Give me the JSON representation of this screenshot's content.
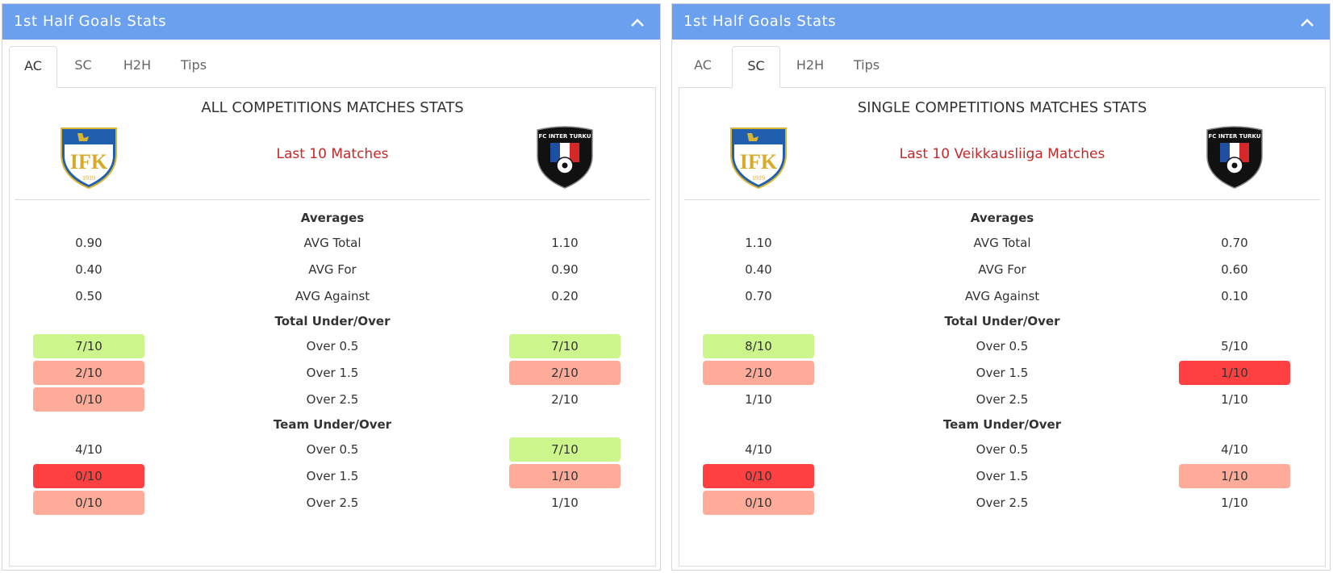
{
  "panels": [
    {
      "header": {
        "title": "1st Half Goals Stats",
        "collapse_icon": "chevron-up-icon"
      },
      "tabs": [
        {
          "label": "AC",
          "active": true
        },
        {
          "label": "SC",
          "active": false
        },
        {
          "label": "H2H",
          "active": false
        },
        {
          "label": "Tips",
          "active": false
        }
      ],
      "section_title": "ALL COMPETITIONS MATCHES STATS",
      "sub_title": "Last 10 Matches",
      "home_logo": "ifk-crest-icon",
      "away_logo": "fc-inter-turku-crest-icon",
      "groups": [
        {
          "title": "Averages",
          "rows": [
            {
              "label": "AVG Total",
              "home": "0.90",
              "away": "1.10",
              "home_color": "none",
              "away_color": "none"
            },
            {
              "label": "AVG For",
              "home": "0.40",
              "away": "0.90",
              "home_color": "none",
              "away_color": "none"
            },
            {
              "label": "AVG Against",
              "home": "0.50",
              "away": "0.20",
              "home_color": "none",
              "away_color": "none"
            }
          ]
        },
        {
          "title": "Total Under/Over",
          "rows": [
            {
              "label": "Over 0.5",
              "home": "7/10",
              "away": "7/10",
              "home_color": "green",
              "away_color": "green"
            },
            {
              "label": "Over 1.5",
              "home": "2/10",
              "away": "2/10",
              "home_color": "salmon",
              "away_color": "salmon"
            },
            {
              "label": "Over 2.5",
              "home": "0/10",
              "away": "2/10",
              "home_color": "salmon",
              "away_color": "none"
            }
          ]
        },
        {
          "title": "Team Under/Over",
          "rows": [
            {
              "label": "Over 0.5",
              "home": "4/10",
              "away": "7/10",
              "home_color": "none",
              "away_color": "green"
            },
            {
              "label": "Over 1.5",
              "home": "0/10",
              "away": "1/10",
              "home_color": "red",
              "away_color": "salmon"
            },
            {
              "label": "Over 2.5",
              "home": "0/10",
              "away": "1/10",
              "home_color": "salmon",
              "away_color": "none"
            }
          ]
        }
      ]
    },
    {
      "header": {
        "title": "1st Half Goals Stats",
        "collapse_icon": "chevron-up-icon"
      },
      "tabs": [
        {
          "label": "AC",
          "active": false
        },
        {
          "label": "SC",
          "active": true
        },
        {
          "label": "H2H",
          "active": false
        },
        {
          "label": "Tips",
          "active": false
        }
      ],
      "section_title": "SINGLE COMPETITIONS MATCHES STATS",
      "sub_title": "Last 10 Veikkausliiga Matches",
      "home_logo": "ifk-crest-icon",
      "away_logo": "fc-inter-turku-crest-icon",
      "groups": [
        {
          "title": "Averages",
          "rows": [
            {
              "label": "AVG Total",
              "home": "1.10",
              "away": "0.70",
              "home_color": "none",
              "away_color": "none"
            },
            {
              "label": "AVG For",
              "home": "0.40",
              "away": "0.60",
              "home_color": "none",
              "away_color": "none"
            },
            {
              "label": "AVG Against",
              "home": "0.70",
              "away": "0.10",
              "home_color": "none",
              "away_color": "none"
            }
          ]
        },
        {
          "title": "Total Under/Over",
          "rows": [
            {
              "label": "Over 0.5",
              "home": "8/10",
              "away": "5/10",
              "home_color": "green",
              "away_color": "none"
            },
            {
              "label": "Over 1.5",
              "home": "2/10",
              "away": "1/10",
              "home_color": "salmon",
              "away_color": "red"
            },
            {
              "label": "Over 2.5",
              "home": "1/10",
              "away": "1/10",
              "home_color": "none",
              "away_color": "none"
            }
          ]
        },
        {
          "title": "Team Under/Over",
          "rows": [
            {
              "label": "Over 0.5",
              "home": "4/10",
              "away": "4/10",
              "home_color": "none",
              "away_color": "none"
            },
            {
              "label": "Over 1.5",
              "home": "0/10",
              "away": "1/10",
              "home_color": "red",
              "away_color": "salmon"
            },
            {
              "label": "Over 2.5",
              "home": "0/10",
              "away": "1/10",
              "home_color": "salmon",
              "away_color": "none"
            }
          ]
        }
      ]
    }
  ],
  "colors": {
    "header": "#6aa0ee",
    "green": "#ccf68c",
    "salmon": "#ffab99",
    "red": "#ff4040",
    "subtitle": "#c62828"
  }
}
